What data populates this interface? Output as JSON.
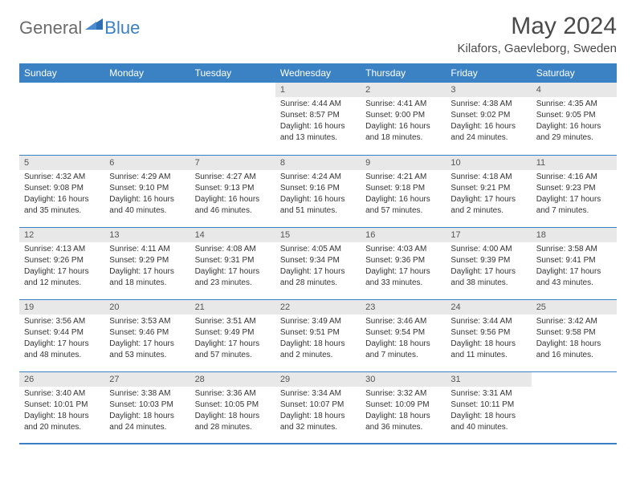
{
  "logo": {
    "text1": "General",
    "text2": "Blue"
  },
  "title": "May 2024",
  "location": "Kilafors, Gaevleborg, Sweden",
  "colors": {
    "header_bg": "#3b82c4",
    "header_text": "#ffffff",
    "daynum_bg": "#e8e8e8",
    "border": "#3b7fc4",
    "logo_gray": "#6b6b6b",
    "logo_blue": "#3b7fc4",
    "text": "#333333"
  },
  "weekdays": [
    "Sunday",
    "Monday",
    "Tuesday",
    "Wednesday",
    "Thursday",
    "Friday",
    "Saturday"
  ],
  "weeks": [
    [
      {
        "day": "",
        "sunrise": "",
        "sunset": "",
        "daylight1": "",
        "daylight2": ""
      },
      {
        "day": "",
        "sunrise": "",
        "sunset": "",
        "daylight1": "",
        "daylight2": ""
      },
      {
        "day": "",
        "sunrise": "",
        "sunset": "",
        "daylight1": "",
        "daylight2": ""
      },
      {
        "day": "1",
        "sunrise": "Sunrise: 4:44 AM",
        "sunset": "Sunset: 8:57 PM",
        "daylight1": "Daylight: 16 hours",
        "daylight2": "and 13 minutes."
      },
      {
        "day": "2",
        "sunrise": "Sunrise: 4:41 AM",
        "sunset": "Sunset: 9:00 PM",
        "daylight1": "Daylight: 16 hours",
        "daylight2": "and 18 minutes."
      },
      {
        "day": "3",
        "sunrise": "Sunrise: 4:38 AM",
        "sunset": "Sunset: 9:02 PM",
        "daylight1": "Daylight: 16 hours",
        "daylight2": "and 24 minutes."
      },
      {
        "day": "4",
        "sunrise": "Sunrise: 4:35 AM",
        "sunset": "Sunset: 9:05 PM",
        "daylight1": "Daylight: 16 hours",
        "daylight2": "and 29 minutes."
      }
    ],
    [
      {
        "day": "5",
        "sunrise": "Sunrise: 4:32 AM",
        "sunset": "Sunset: 9:08 PM",
        "daylight1": "Daylight: 16 hours",
        "daylight2": "and 35 minutes."
      },
      {
        "day": "6",
        "sunrise": "Sunrise: 4:29 AM",
        "sunset": "Sunset: 9:10 PM",
        "daylight1": "Daylight: 16 hours",
        "daylight2": "and 40 minutes."
      },
      {
        "day": "7",
        "sunrise": "Sunrise: 4:27 AM",
        "sunset": "Sunset: 9:13 PM",
        "daylight1": "Daylight: 16 hours",
        "daylight2": "and 46 minutes."
      },
      {
        "day": "8",
        "sunrise": "Sunrise: 4:24 AM",
        "sunset": "Sunset: 9:16 PM",
        "daylight1": "Daylight: 16 hours",
        "daylight2": "and 51 minutes."
      },
      {
        "day": "9",
        "sunrise": "Sunrise: 4:21 AM",
        "sunset": "Sunset: 9:18 PM",
        "daylight1": "Daylight: 16 hours",
        "daylight2": "and 57 minutes."
      },
      {
        "day": "10",
        "sunrise": "Sunrise: 4:18 AM",
        "sunset": "Sunset: 9:21 PM",
        "daylight1": "Daylight: 17 hours",
        "daylight2": "and 2 minutes."
      },
      {
        "day": "11",
        "sunrise": "Sunrise: 4:16 AM",
        "sunset": "Sunset: 9:23 PM",
        "daylight1": "Daylight: 17 hours",
        "daylight2": "and 7 minutes."
      }
    ],
    [
      {
        "day": "12",
        "sunrise": "Sunrise: 4:13 AM",
        "sunset": "Sunset: 9:26 PM",
        "daylight1": "Daylight: 17 hours",
        "daylight2": "and 12 minutes."
      },
      {
        "day": "13",
        "sunrise": "Sunrise: 4:11 AM",
        "sunset": "Sunset: 9:29 PM",
        "daylight1": "Daylight: 17 hours",
        "daylight2": "and 18 minutes."
      },
      {
        "day": "14",
        "sunrise": "Sunrise: 4:08 AM",
        "sunset": "Sunset: 9:31 PM",
        "daylight1": "Daylight: 17 hours",
        "daylight2": "and 23 minutes."
      },
      {
        "day": "15",
        "sunrise": "Sunrise: 4:05 AM",
        "sunset": "Sunset: 9:34 PM",
        "daylight1": "Daylight: 17 hours",
        "daylight2": "and 28 minutes."
      },
      {
        "day": "16",
        "sunrise": "Sunrise: 4:03 AM",
        "sunset": "Sunset: 9:36 PM",
        "daylight1": "Daylight: 17 hours",
        "daylight2": "and 33 minutes."
      },
      {
        "day": "17",
        "sunrise": "Sunrise: 4:00 AM",
        "sunset": "Sunset: 9:39 PM",
        "daylight1": "Daylight: 17 hours",
        "daylight2": "and 38 minutes."
      },
      {
        "day": "18",
        "sunrise": "Sunrise: 3:58 AM",
        "sunset": "Sunset: 9:41 PM",
        "daylight1": "Daylight: 17 hours",
        "daylight2": "and 43 minutes."
      }
    ],
    [
      {
        "day": "19",
        "sunrise": "Sunrise: 3:56 AM",
        "sunset": "Sunset: 9:44 PM",
        "daylight1": "Daylight: 17 hours",
        "daylight2": "and 48 minutes."
      },
      {
        "day": "20",
        "sunrise": "Sunrise: 3:53 AM",
        "sunset": "Sunset: 9:46 PM",
        "daylight1": "Daylight: 17 hours",
        "daylight2": "and 53 minutes."
      },
      {
        "day": "21",
        "sunrise": "Sunrise: 3:51 AM",
        "sunset": "Sunset: 9:49 PM",
        "daylight1": "Daylight: 17 hours",
        "daylight2": "and 57 minutes."
      },
      {
        "day": "22",
        "sunrise": "Sunrise: 3:49 AM",
        "sunset": "Sunset: 9:51 PM",
        "daylight1": "Daylight: 18 hours",
        "daylight2": "and 2 minutes."
      },
      {
        "day": "23",
        "sunrise": "Sunrise: 3:46 AM",
        "sunset": "Sunset: 9:54 PM",
        "daylight1": "Daylight: 18 hours",
        "daylight2": "and 7 minutes."
      },
      {
        "day": "24",
        "sunrise": "Sunrise: 3:44 AM",
        "sunset": "Sunset: 9:56 PM",
        "daylight1": "Daylight: 18 hours",
        "daylight2": "and 11 minutes."
      },
      {
        "day": "25",
        "sunrise": "Sunrise: 3:42 AM",
        "sunset": "Sunset: 9:58 PM",
        "daylight1": "Daylight: 18 hours",
        "daylight2": "and 16 minutes."
      }
    ],
    [
      {
        "day": "26",
        "sunrise": "Sunrise: 3:40 AM",
        "sunset": "Sunset: 10:01 PM",
        "daylight1": "Daylight: 18 hours",
        "daylight2": "and 20 minutes."
      },
      {
        "day": "27",
        "sunrise": "Sunrise: 3:38 AM",
        "sunset": "Sunset: 10:03 PM",
        "daylight1": "Daylight: 18 hours",
        "daylight2": "and 24 minutes."
      },
      {
        "day": "28",
        "sunrise": "Sunrise: 3:36 AM",
        "sunset": "Sunset: 10:05 PM",
        "daylight1": "Daylight: 18 hours",
        "daylight2": "and 28 minutes."
      },
      {
        "day": "29",
        "sunrise": "Sunrise: 3:34 AM",
        "sunset": "Sunset: 10:07 PM",
        "daylight1": "Daylight: 18 hours",
        "daylight2": "and 32 minutes."
      },
      {
        "day": "30",
        "sunrise": "Sunrise: 3:32 AM",
        "sunset": "Sunset: 10:09 PM",
        "daylight1": "Daylight: 18 hours",
        "daylight2": "and 36 minutes."
      },
      {
        "day": "31",
        "sunrise": "Sunrise: 3:31 AM",
        "sunset": "Sunset: 10:11 PM",
        "daylight1": "Daylight: 18 hours",
        "daylight2": "and 40 minutes."
      },
      {
        "day": "",
        "sunrise": "",
        "sunset": "",
        "daylight1": "",
        "daylight2": ""
      }
    ]
  ]
}
